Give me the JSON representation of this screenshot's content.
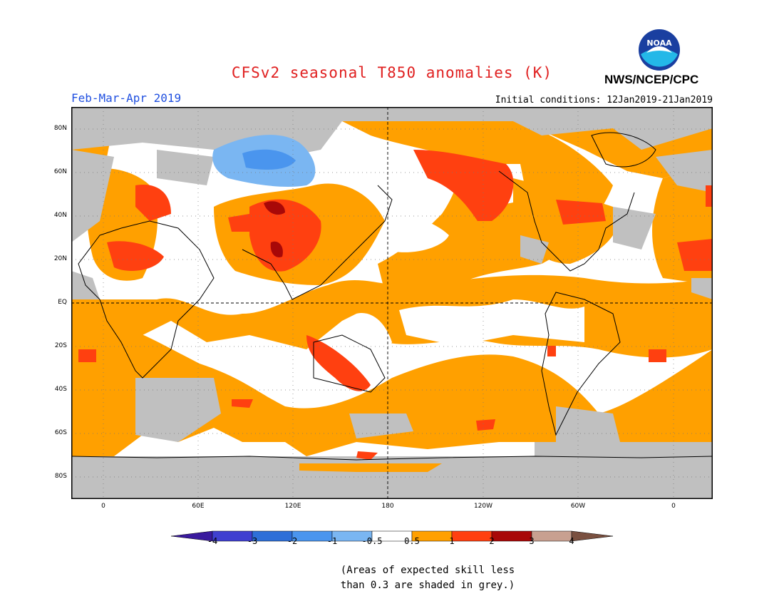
{
  "header": {
    "title": "CFSv2 seasonal T850 anomalies (K)",
    "season": "Feb-Mar-Apr 2019",
    "initial_conditions": "Initial conditions: 12Jan2019-21Jan2019",
    "organization": "NWS/NCEP/CPC",
    "logo_text": "NOAA"
  },
  "axes": {
    "lat_labels": [
      "80N",
      "60N",
      "40N",
      "20N",
      "EQ",
      "20S",
      "40S",
      "60S",
      "80S"
    ],
    "lon_labels": [
      "0",
      "60E",
      "120E",
      "180",
      "120W",
      "60W",
      "0"
    ]
  },
  "colorbar": {
    "labels": [
      "-4",
      "-3",
      "-2",
      "-1",
      "-0.5",
      "0.5",
      "1",
      "2",
      "3",
      "4"
    ],
    "colors": [
      "#3a1a9e",
      "#4040d0",
      "#2e6fd8",
      "#4a95ee",
      "#7ab6f2",
      "#ffffff",
      "#ffa000",
      "#ff4010",
      "#a80808",
      "#c8a090",
      "#7a5040"
    ]
  },
  "note": {
    "line1": "(Areas of expected skill less",
    "line2": "than 0.3 are shaded in grey.)"
  },
  "legend_colors": {
    "grey_low_skill": "#c0c0c0",
    "orange": "#ffa000",
    "red": "#ff4010",
    "dark_red": "#a80808",
    "light_blue": "#7ab6f2",
    "blue": "#4a95ee"
  }
}
